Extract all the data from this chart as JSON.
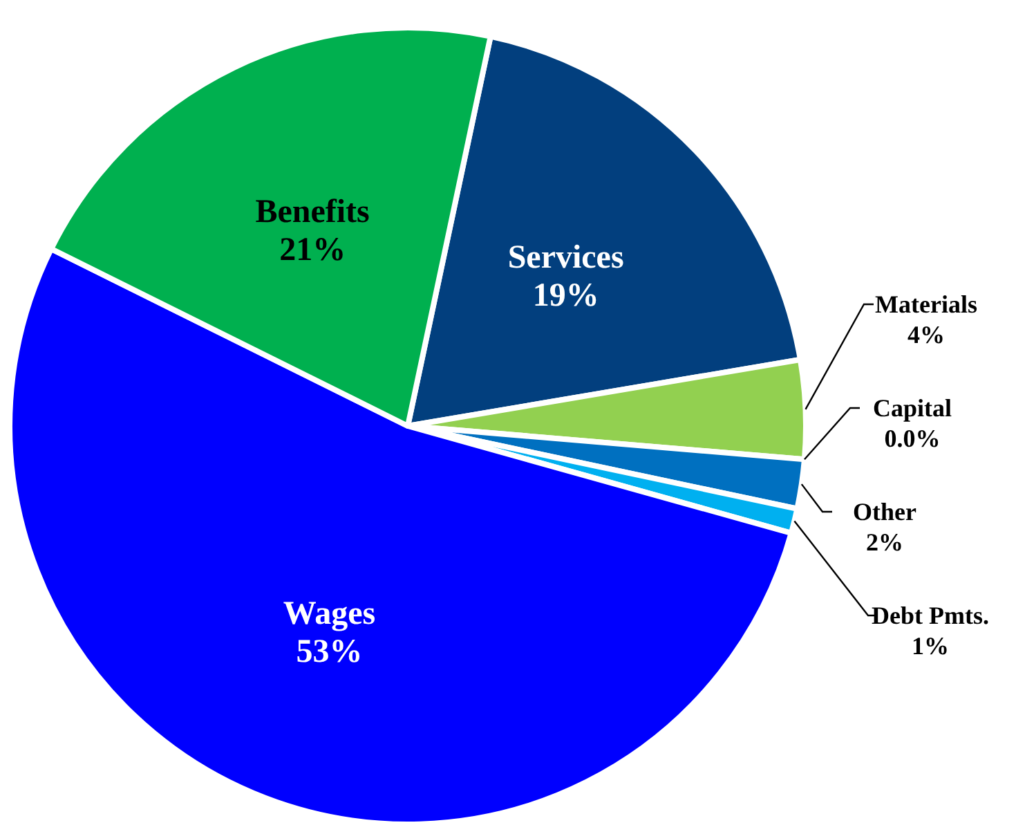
{
  "chart_data": {
    "type": "pie",
    "categories": [
      "Services",
      "Materials",
      "Capital",
      "Other",
      "Debt Pmts.",
      "Wages",
      "Benefits"
    ],
    "values": [
      19,
      4,
      0.0,
      2,
      1,
      53,
      21
    ],
    "value_labels": [
      "19%",
      "4%",
      "0.0%",
      "2%",
      "1%",
      "53%",
      "21%"
    ],
    "colors": [
      "#023f7e",
      "#92d050",
      "#c0504d",
      "#0070c0",
      "#00b0f0",
      "#0000ff",
      "#00b04f"
    ]
  }
}
